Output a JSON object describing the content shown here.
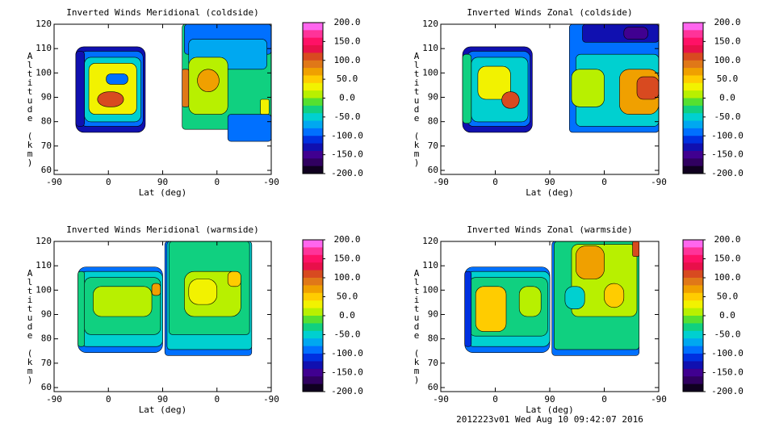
{
  "chart_data": [
    {
      "type": "contour",
      "title": "Inverted Winds Meridional (coldside)",
      "xlabel": "Lat (deg)",
      "ylabel": "Altitude (km)",
      "xlim": [
        0,
        360
      ],
      "xticks": [
        {
          "value": 0,
          "label": "-90"
        },
        {
          "value": 90,
          "label": "0"
        },
        {
          "value": 180,
          "label": "90"
        },
        {
          "value": 270,
          "label": "0"
        },
        {
          "value": 360,
          "label": "-90"
        }
      ],
      "ylim": [
        60,
        120
      ],
      "yticks": [
        60,
        70,
        80,
        90,
        100,
        110,
        120
      ],
      "clim": [
        -200,
        200
      ],
      "cticks": [
        {
          "value": 200,
          "label": "200.0"
        },
        {
          "value": 150,
          "label": "150.0"
        },
        {
          "value": 100,
          "label": "100.0"
        },
        {
          "value": 50,
          "label": "50.0"
        },
        {
          "value": 0,
          "label": "0.0"
        },
        {
          "value": -50,
          "label": "-50.0"
        },
        {
          "value": -100,
          "label": "-100.0"
        },
        {
          "value": -150,
          "label": "-150.0"
        },
        {
          "value": -200,
          "label": "-200.0"
        }
      ]
    },
    {
      "type": "contour",
      "title": "Inverted Winds Zonal (coldside)",
      "xlabel": "Lat (deg)",
      "ylabel": "Altitude (km)",
      "xlim": [
        0,
        360
      ],
      "xticks": [
        {
          "value": 0,
          "label": "-90"
        },
        {
          "value": 90,
          "label": "0"
        },
        {
          "value": 180,
          "label": "90"
        },
        {
          "value": 270,
          "label": "0"
        },
        {
          "value": 360,
          "label": "-90"
        }
      ],
      "ylim": [
        60,
        120
      ],
      "yticks": [
        60,
        70,
        80,
        90,
        100,
        110,
        120
      ],
      "clim": [
        -200,
        200
      ],
      "cticks": [
        {
          "value": 200,
          "label": "200.0"
        },
        {
          "value": 150,
          "label": "150.0"
        },
        {
          "value": 100,
          "label": "100.0"
        },
        {
          "value": 50,
          "label": "50.0"
        },
        {
          "value": 0,
          "label": "0.0"
        },
        {
          "value": -50,
          "label": "-50.0"
        },
        {
          "value": -100,
          "label": "-100.0"
        },
        {
          "value": -150,
          "label": "-150.0"
        },
        {
          "value": -200,
          "label": "-200.0"
        }
      ]
    },
    {
      "type": "contour",
      "title": "Inverted Winds Meridional (warmside)",
      "xlabel": "Lat (deg)",
      "ylabel": "Altitude (km)",
      "xlim": [
        0,
        360
      ],
      "xticks": [
        {
          "value": 0,
          "label": "-90"
        },
        {
          "value": 90,
          "label": "0"
        },
        {
          "value": 180,
          "label": "90"
        },
        {
          "value": 270,
          "label": "0"
        },
        {
          "value": 360,
          "label": "-90"
        }
      ],
      "ylim": [
        60,
        120
      ],
      "yticks": [
        60,
        70,
        80,
        90,
        100,
        110,
        120
      ],
      "clim": [
        -200,
        200
      ],
      "cticks": [
        {
          "value": 200,
          "label": "200.0"
        },
        {
          "value": 150,
          "label": "150.0"
        },
        {
          "value": 100,
          "label": "100.0"
        },
        {
          "value": 50,
          "label": "50.0"
        },
        {
          "value": 0,
          "label": "0.0"
        },
        {
          "value": -50,
          "label": "-50.0"
        },
        {
          "value": -100,
          "label": "-100.0"
        },
        {
          "value": -150,
          "label": "-150.0"
        },
        {
          "value": -200,
          "label": "-200.0"
        }
      ]
    },
    {
      "type": "contour",
      "title": "Inverted Winds Zonal (warmside)",
      "xlabel": "Lat (deg)",
      "ylabel": "Altitude (km)",
      "xlim": [
        0,
        360
      ],
      "xticks": [
        {
          "value": 0,
          "label": "-90"
        },
        {
          "value": 90,
          "label": "0"
        },
        {
          "value": 180,
          "label": "90"
        },
        {
          "value": 270,
          "label": "0"
        },
        {
          "value": 360,
          "label": "-90"
        }
      ],
      "ylim": [
        60,
        120
      ],
      "yticks": [
        60,
        70,
        80,
        90,
        100,
        110,
        120
      ],
      "clim": [
        -200,
        200
      ],
      "cticks": [
        {
          "value": 200,
          "label": "200.0"
        },
        {
          "value": 150,
          "label": "150.0"
        },
        {
          "value": 100,
          "label": "100.0"
        },
        {
          "value": 50,
          "label": "50.0"
        },
        {
          "value": 0,
          "label": "0.0"
        },
        {
          "value": -50,
          "label": "-50.0"
        },
        {
          "value": -100,
          "label": "-100.0"
        },
        {
          "value": -150,
          "label": "-150.0"
        },
        {
          "value": -200,
          "label": "-200.0"
        }
      ]
    }
  ],
  "footer": "2012223v01 Wed Aug 10 09:42:07 2016"
}
